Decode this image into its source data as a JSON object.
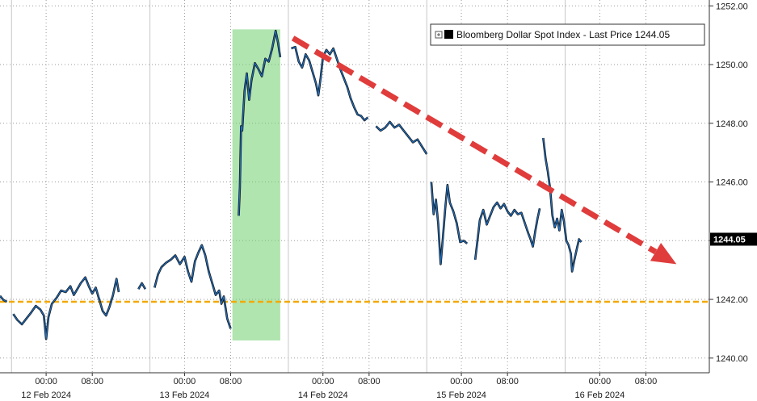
{
  "chart_data": {
    "type": "line",
    "title": "",
    "xlabel": "",
    "ylabel": "",
    "ylim": [
      1239.5,
      1252.2
    ],
    "y_ticks": [
      1240.0,
      1242.0,
      1244.0,
      1246.0,
      1248.0,
      1250.0,
      1252.0
    ],
    "y_tick_labels": [
      "1240.00",
      "1242.00",
      "1244.00",
      "1246.00",
      "1248.00",
      "1250.00",
      "1252.00"
    ],
    "x_ticks": [
      {
        "label": "00:00",
        "t": 24
      },
      {
        "label": "08:00",
        "t": 32
      },
      {
        "label": "00:00",
        "t": 48
      },
      {
        "label": "08:00",
        "t": 56
      },
      {
        "label": "00:00",
        "t": 72
      },
      {
        "label": "08:00",
        "t": 80
      },
      {
        "label": "00:00",
        "t": 96
      },
      {
        "label": "08:00",
        "t": 104
      },
      {
        "label": "00:00",
        "t": 120
      },
      {
        "label": "08:00",
        "t": 128
      }
    ],
    "date_labels": [
      {
        "label": "12 Feb 2024",
        "t": 24
      },
      {
        "label": "13 Feb 2024",
        "t": 48
      },
      {
        "label": "14 Feb 2024",
        "t": 72
      },
      {
        "label": "15 Feb 2024",
        "t": 96
      },
      {
        "label": "16 Feb 2024",
        "t": 120
      }
    ],
    "day_separators": [
      18,
      42,
      66,
      90,
      114
    ],
    "x_range": [
      16,
      139
    ],
    "grid": true,
    "legend": {
      "placement": "top-right",
      "label": "Bloomberg Dollar Spot Index - Last Price 1244.05"
    },
    "last_price_label": "1244.05",
    "last_price": 1244.05,
    "reference_level": 1241.92,
    "highlight_band": {
      "t_start": 56.3,
      "t_end": 64.6,
      "y_low": 1240.6,
      "y_high": 1251.2,
      "color": "#6fcf6f"
    },
    "trend_arrow": {
      "from_t": 66.8,
      "from_y": 1250.9,
      "to_t": 133.3,
      "to_y": 1243.2,
      "color": "#e03c3c"
    },
    "series_color": "#1f6fc0",
    "series_outline": "#111111",
    "series": [
      {
        "name": "Bloomberg Dollar Spot Index",
        "segments": [
          [
            [
              16.0,
              1242.12
            ],
            [
              16.6,
              1241.98
            ],
            [
              17.2,
              1241.92
            ]
          ],
          [
            [
              18.3,
              1241.5
            ],
            [
              19.0,
              1241.3
            ],
            [
              19.8,
              1241.15
            ],
            [
              20.6,
              1241.35
            ],
            [
              21.4,
              1241.55
            ],
            [
              22.2,
              1241.78
            ],
            [
              23.0,
              1241.65
            ],
            [
              23.6,
              1241.45
            ],
            [
              24.0,
              1240.65
            ],
            [
              24.4,
              1241.4
            ],
            [
              25.0,
              1241.85
            ],
            [
              25.8,
              1242.05
            ],
            [
              26.6,
              1242.3
            ],
            [
              27.4,
              1242.25
            ],
            [
              28.2,
              1242.45
            ],
            [
              28.8,
              1242.15
            ],
            [
              29.4,
              1242.35
            ],
            [
              30.0,
              1242.55
            ],
            [
              30.8,
              1242.75
            ],
            [
              31.4,
              1242.45
            ],
            [
              32.0,
              1242.2
            ],
            [
              32.6,
              1242.4
            ],
            [
              33.2,
              1242.0
            ],
            [
              33.8,
              1241.6
            ],
            [
              34.4,
              1241.45
            ],
            [
              35.0,
              1241.75
            ],
            [
              35.6,
              1242.15
            ],
            [
              36.2,
              1242.7
            ],
            [
              36.6,
              1242.25
            ]
          ],
          [
            [
              40.0,
              1242.35
            ],
            [
              40.6,
              1242.55
            ],
            [
              41.2,
              1242.35
            ]
          ],
          [
            [
              42.8,
              1242.4
            ],
            [
              43.4,
              1242.85
            ],
            [
              44.0,
              1243.1
            ],
            [
              44.8,
              1243.25
            ],
            [
              45.6,
              1243.35
            ],
            [
              46.4,
              1243.5
            ],
            [
              47.2,
              1243.2
            ],
            [
              48.0,
              1243.45
            ],
            [
              48.6,
              1242.95
            ],
            [
              49.2,
              1242.6
            ],
            [
              49.8,
              1243.3
            ],
            [
              50.4,
              1243.6
            ],
            [
              51.0,
              1243.85
            ],
            [
              51.6,
              1243.5
            ],
            [
              52.2,
              1242.95
            ],
            [
              52.8,
              1242.55
            ],
            [
              53.4,
              1242.15
            ],
            [
              54.0,
              1242.3
            ],
            [
              54.4,
              1241.85
            ],
            [
              54.8,
              1242.1
            ],
            [
              55.4,
              1241.35
            ],
            [
              56.0,
              1241.0
            ]
          ],
          [
            [
              57.4,
              1244.85
            ],
            [
              57.6,
              1245.8
            ],
            [
              57.8,
              1247.9
            ],
            [
              58.0,
              1247.75
            ],
            [
              58.4,
              1249.1
            ],
            [
              58.8,
              1249.7
            ],
            [
              59.2,
              1248.8
            ],
            [
              59.6,
              1249.45
            ],
            [
              60.2,
              1250.05
            ],
            [
              60.8,
              1249.85
            ],
            [
              61.4,
              1249.6
            ],
            [
              62.0,
              1250.2
            ],
            [
              62.6,
              1250.1
            ],
            [
              63.2,
              1250.55
            ],
            [
              63.8,
              1251.15
            ],
            [
              64.2,
              1250.75
            ],
            [
              64.6,
              1250.25
            ]
          ],
          [
            [
              66.5,
              1250.55
            ],
            [
              67.2,
              1250.6
            ],
            [
              67.8,
              1250.1
            ],
            [
              68.4,
              1249.9
            ],
            [
              69.0,
              1250.35
            ],
            [
              69.6,
              1250.15
            ],
            [
              70.2,
              1249.75
            ],
            [
              70.8,
              1249.35
            ],
            [
              71.2,
              1248.95
            ],
            [
              71.6,
              1249.55
            ],
            [
              72.0,
              1250.25
            ],
            [
              72.6,
              1250.5
            ],
            [
              73.2,
              1250.35
            ],
            [
              73.8,
              1250.55
            ],
            [
              74.4,
              1250.2
            ],
            [
              75.0,
              1249.85
            ],
            [
              75.6,
              1249.55
            ],
            [
              76.2,
              1249.25
            ],
            [
              76.8,
              1248.85
            ],
            [
              77.4,
              1248.55
            ],
            [
              78.0,
              1248.3
            ],
            [
              78.6,
              1248.25
            ],
            [
              79.2,
              1248.1
            ],
            [
              79.8,
              1248.2
            ]
          ],
          [
            [
              81.2,
              1247.9
            ],
            [
              82.0,
              1247.75
            ],
            [
              82.8,
              1247.85
            ],
            [
              83.6,
              1248.05
            ],
            [
              84.4,
              1247.85
            ],
            [
              85.2,
              1247.95
            ],
            [
              86.0,
              1247.75
            ],
            [
              86.8,
              1247.55
            ],
            [
              87.6,
              1247.35
            ],
            [
              88.4,
              1247.45
            ],
            [
              89.2,
              1247.2
            ],
            [
              90.0,
              1246.95
            ]
          ],
          [
            [
              90.8,
              1246.0
            ],
            [
              91.2,
              1244.9
            ],
            [
              91.6,
              1245.4
            ],
            [
              92.0,
              1244.55
            ],
            [
              92.4,
              1243.2
            ],
            [
              92.8,
              1244.1
            ],
            [
              93.2,
              1245.1
            ],
            [
              93.6,
              1245.9
            ],
            [
              94.0,
              1245.3
            ],
            [
              94.6,
              1245.0
            ],
            [
              95.2,
              1244.6
            ],
            [
              95.8,
              1243.95
            ],
            [
              96.4,
              1244.0
            ],
            [
              97.0,
              1243.9
            ]
          ],
          [
            [
              98.4,
              1243.35
            ],
            [
              98.8,
              1244.0
            ],
            [
              99.2,
              1244.7
            ],
            [
              99.8,
              1245.05
            ],
            [
              100.4,
              1244.55
            ],
            [
              101.0,
              1244.85
            ],
            [
              101.6,
              1245.15
            ],
            [
              102.2,
              1245.3
            ],
            [
              102.8,
              1245.1
            ],
            [
              103.4,
              1245.25
            ],
            [
              104.0,
              1245.0
            ],
            [
              104.6,
              1244.85
            ],
            [
              105.2,
              1245.05
            ],
            [
              105.8,
              1244.9
            ],
            [
              106.4,
              1244.95
            ],
            [
              107.0,
              1244.6
            ],
            [
              107.6,
              1244.25
            ],
            [
              108.0,
              1244.05
            ],
            [
              108.4,
              1243.8
            ],
            [
              108.8,
              1244.3
            ],
            [
              109.2,
              1244.75
            ],
            [
              109.6,
              1245.1
            ]
          ],
          [
            [
              110.2,
              1247.5
            ],
            [
              110.6,
              1246.8
            ],
            [
              111.0,
              1246.35
            ],
            [
              111.4,
              1245.75
            ],
            [
              111.8,
              1244.85
            ],
            [
              112.2,
              1244.45
            ],
            [
              112.6,
              1244.75
            ],
            [
              113.0,
              1244.35
            ],
            [
              113.4,
              1245.05
            ],
            [
              113.8,
              1244.65
            ],
            [
              114.2,
              1244.0
            ],
            [
              114.6,
              1243.85
            ],
            [
              115.0,
              1243.55
            ],
            [
              115.2,
              1242.95
            ],
            [
              115.6,
              1243.35
            ],
            [
              116.0,
              1243.7
            ],
            [
              116.4,
              1244.05
            ],
            [
              116.8,
              1243.95
            ]
          ]
        ]
      }
    ]
  }
}
